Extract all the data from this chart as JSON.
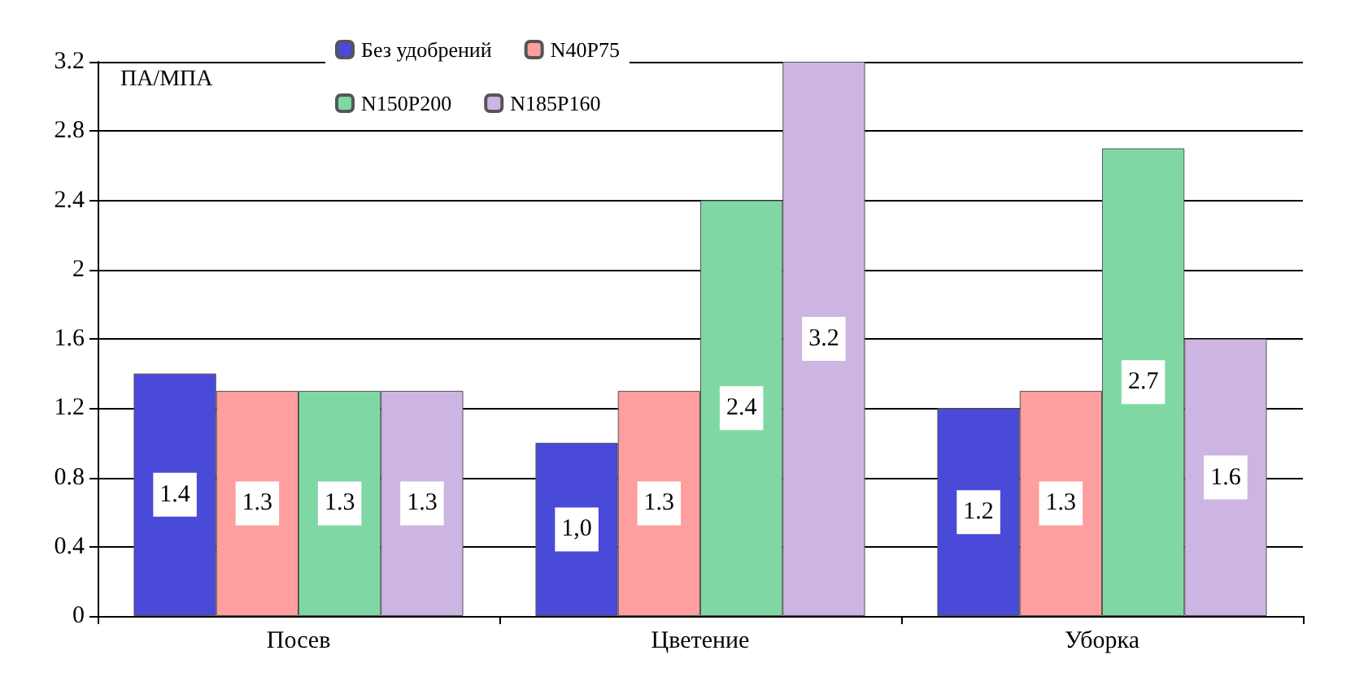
{
  "chart_data": {
    "type": "bar",
    "ylabel": "ПА/МПА",
    "categories": [
      "Посев",
      "Цветение",
      "Уборка"
    ],
    "series": [
      {
        "name": "Без удобрений",
        "color": "#4a4ad8",
        "values": [
          1.4,
          1.0,
          1.2
        ],
        "value_labels": [
          "1.4",
          "1,0",
          "1.2"
        ]
      },
      {
        "name": "N40P75",
        "color": "#ff9e9e",
        "values": [
          1.3,
          1.3,
          1.3
        ],
        "value_labels": [
          "1.3",
          "1.3",
          "1.3"
        ]
      },
      {
        "name": "N150P200",
        "color": "#7fd8a4",
        "values": [
          1.3,
          2.4,
          2.7
        ],
        "value_labels": [
          "1.3",
          "2.4",
          "2.7"
        ]
      },
      {
        "name": "N185P160",
        "color": "#cdb5e3",
        "values": [
          1.3,
          3.2,
          1.6
        ],
        "value_labels": [
          "1.3",
          "3.2",
          "1.6"
        ]
      }
    ],
    "ylim": [
      0,
      3.2
    ],
    "yticks": [
      0,
      0.4,
      0.8,
      1.2,
      1.6,
      2,
      2.4,
      2.8,
      3.2
    ],
    "grid": "y",
    "legend": "top"
  }
}
